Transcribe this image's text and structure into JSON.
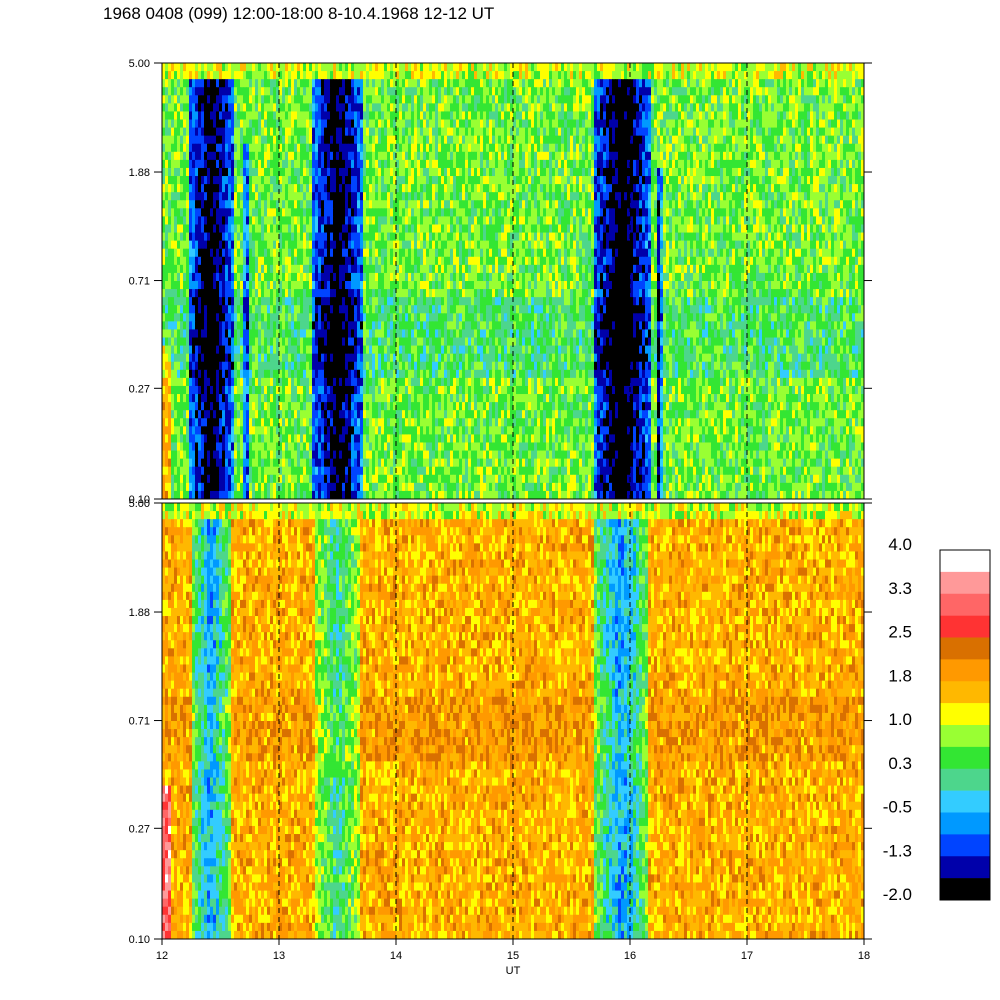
{
  "title": "1968 0408 (099) 12:00-18:00 8-10.4.1968  12-12 UT",
  "chart_data": {
    "type": "heatmap",
    "panels": [
      {
        "name": "top",
        "x_range": [
          12,
          18
        ],
        "y_scale": "log",
        "y_ticks": [
          "5.00",
          "1.88",
          "0.71",
          "0.27",
          "0.10"
        ],
        "y_tick_values": [
          5.0,
          1.88,
          0.71,
          0.27,
          0.1
        ],
        "base_level": 0.6,
        "top_band_level": 1.0,
        "dips": [
          {
            "x_start": 12.22,
            "x_end": 12.62,
            "y_top": 4.2,
            "depth": 2.6
          },
          {
            "x_start": 12.7,
            "x_end": 12.74,
            "y_top": 2.5,
            "depth": 2.0
          },
          {
            "x_start": 13.27,
            "x_end": 13.72,
            "y_top": 4.2,
            "depth": 2.6
          },
          {
            "x_start": 15.68,
            "x_end": 16.18,
            "y_top": 4.2,
            "depth": 2.8
          },
          {
            "x_start": 16.22,
            "x_end": 16.27,
            "y_top": 2.0,
            "depth": 2.0
          }
        ],
        "mid_band": {
          "y_low": 0.3,
          "y_high": 0.6,
          "level": 0.3
        }
      },
      {
        "name": "bottom",
        "x_range": [
          12,
          18
        ],
        "y_scale": "log",
        "y_ticks": [
          "5.00",
          "1.88",
          "0.71",
          "0.27",
          "0.10"
        ],
        "y_tick_values": [
          5.0,
          1.88,
          0.71,
          0.27,
          0.1
        ],
        "base_level": 1.7,
        "top_band_level": 1.0,
        "dips": [
          {
            "x_start": 12.25,
            "x_end": 12.58,
            "y_top": 4.2,
            "depth": 2.3
          },
          {
            "x_start": 13.3,
            "x_end": 13.7,
            "y_top": 4.2,
            "depth": 1.6
          },
          {
            "x_start": 15.7,
            "x_end": 16.15,
            "y_top": 4.2,
            "depth": 2.3
          }
        ],
        "mid_band": {
          "y_low": 0.5,
          "y_high": 0.9,
          "level": 1.9
        }
      }
    ],
    "x_ticks": [
      "12",
      "13",
      "14",
      "15",
      "16",
      "17",
      "18"
    ],
    "x_tick_values": [
      12,
      13,
      14,
      15,
      16,
      17,
      18
    ],
    "xlabel": "UT",
    "vertical_dashed_lines": [
      13,
      14,
      15,
      16,
      17
    ],
    "colorbar": {
      "range": [
        -2.0,
        4.0
      ],
      "labels": [
        "4.0",
        "3.3",
        "2.5",
        "1.8",
        "1.0",
        "0.3",
        "-0.5",
        "-1.3",
        "-2.0"
      ],
      "colors_top_to_bottom": [
        "#ffffff",
        "#ff9999",
        "#ff6666",
        "#ff3333",
        "#d97000",
        "#ff9900",
        "#ffb800",
        "#ffff00",
        "#99ff33",
        "#33e633",
        "#4dd68c",
        "#33ccff",
        "#0099ff",
        "#0044ff",
        "#0000aa",
        "#000000"
      ]
    }
  }
}
